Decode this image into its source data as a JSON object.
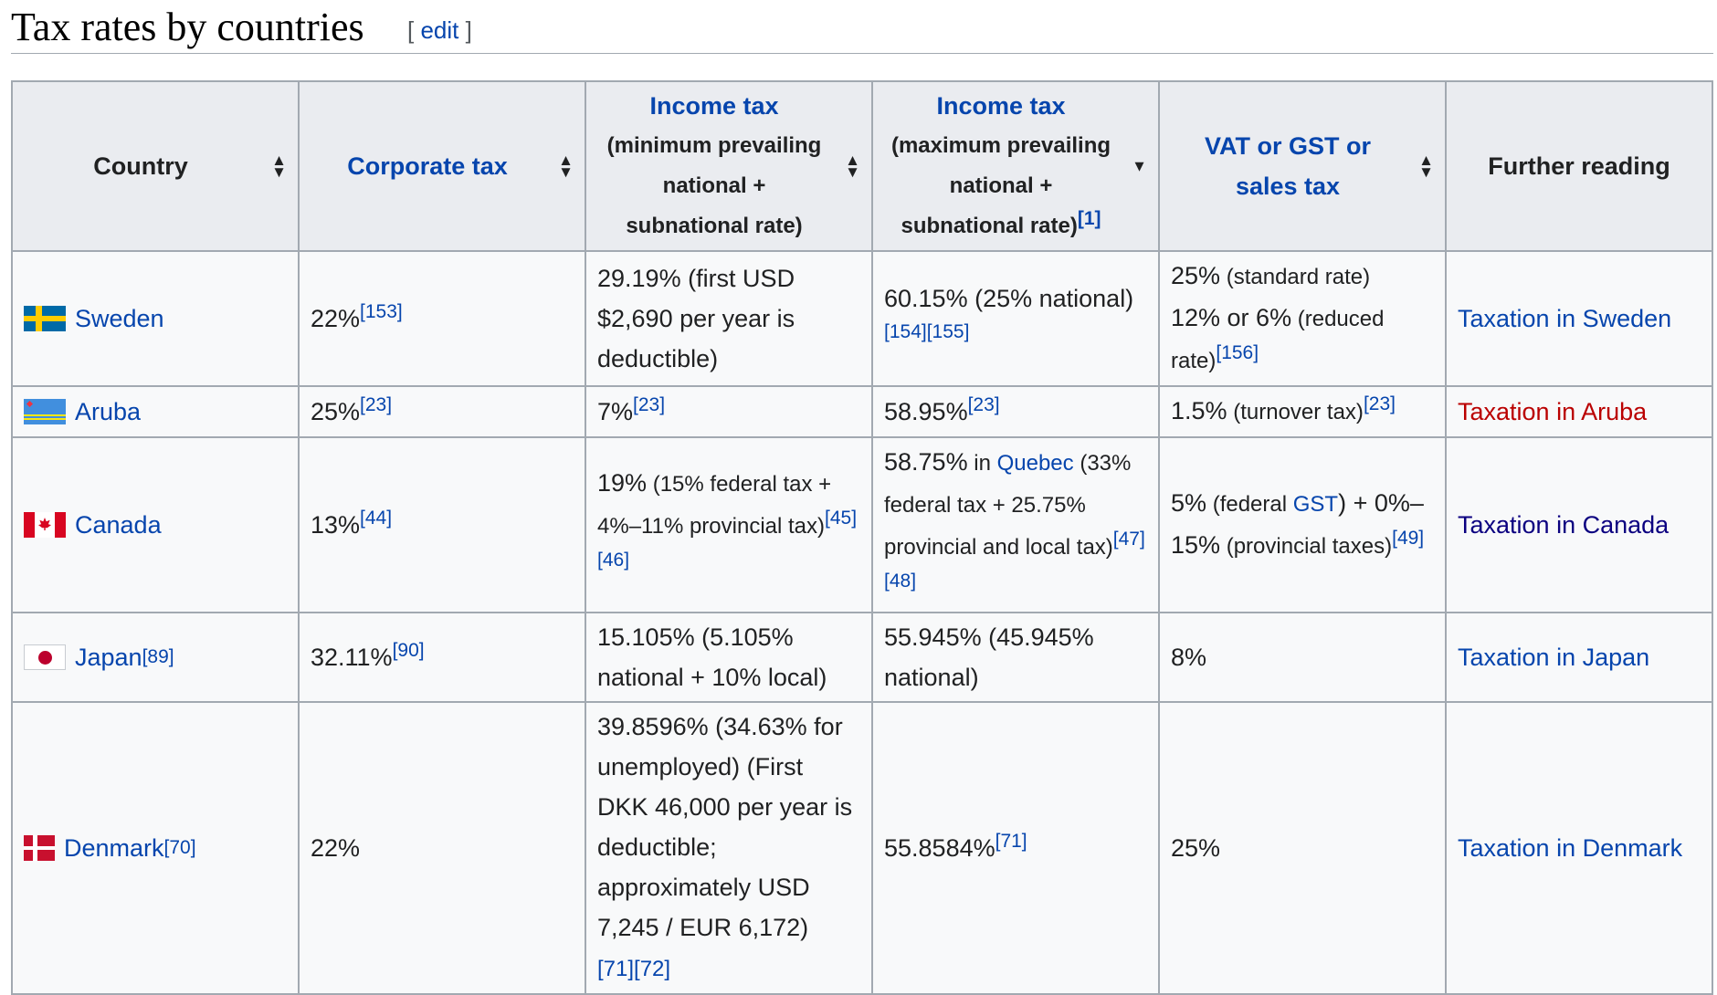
{
  "heading": {
    "title": "Tax rates by countries",
    "edit_open": "[ ",
    "edit_label": "edit",
    "edit_close": " ]"
  },
  "columns": {
    "country": "Country",
    "corporate": "Corporate tax",
    "income_min_title": "Income tax",
    "income_min_sub": "(minimum prevailing national + subnational rate)",
    "income_max_title": "Income tax",
    "income_max_sub": "(maximum prevailing national + subnational rate)",
    "income_max_ref": "[1]",
    "vat": "VAT or GST or sales tax",
    "further": "Further reading"
  },
  "icons": {
    "sort": "sort-updown-icon",
    "sort_desc": "sort-down-icon",
    "flags": [
      "sweden-flag-icon",
      "aruba-flag-icon",
      "canada-flag-icon",
      "japan-flag-icon",
      "denmark-flag-icon"
    ]
  },
  "colors": {
    "link": "#0645ad",
    "redlink": "#ba0000",
    "visited": "#0b0080",
    "header_bg": "#eaecf0",
    "cell_bg": "#f8f9fa",
    "border": "#a2a9b1"
  },
  "rows": [
    {
      "country": "Sweden",
      "country_ref": "",
      "corp": "22%",
      "corp_ref": "[153]",
      "min_main": "29.19% (first USD $2,690 per year is deductible)",
      "min_small": "",
      "min_ref": "",
      "max_main": "60.15% (25% national)",
      "max_ref": "[154][155]",
      "vat_line1": "25%",
      "vat_line1_small": " (standard rate)",
      "vat_line2": "12% or 6%",
      "vat_line2_small": " (reduced rate)",
      "vat_ref": "[156]",
      "further": "Taxation in Sweden"
    },
    {
      "country": "Aruba",
      "country_ref": "",
      "corp": "25%",
      "corp_ref": "[23]",
      "min_main": "7%",
      "min_ref": "[23]",
      "max_main": "58.95%",
      "max_ref": "[23]",
      "vat_main": "1.5%",
      "vat_small": " (turnover tax)",
      "vat_ref": "[23]",
      "further": "Taxation in Aruba"
    },
    {
      "country": "Canada",
      "country_ref": "",
      "corp": "13%",
      "corp_ref": "[44]",
      "min_main": "19%",
      "min_small": " (15% federal tax + 4%–11% provincial tax)",
      "min_ref": "[45][46]",
      "max_main": "58.75%",
      "max_small_a": " in ",
      "max_link": "Quebec",
      "max_small_b": " (33% federal tax + 25.75% provincial and local tax)",
      "max_ref": "[47][48]",
      "vat_a": "5%",
      "vat_b": " (federal ",
      "vat_link": "GST",
      "vat_c": ") + ",
      "vat_d": "0%–15%",
      "vat_e": " (provincial taxes)",
      "vat_ref": "[49]",
      "further": "Taxation in Canada"
    },
    {
      "country": "Japan",
      "country_ref": "[89]",
      "corp": "32.11%",
      "corp_ref": "[90]",
      "min_main": "15.105% (5.105% national + 10% local)",
      "max_main": "55.945% (45.945% national)",
      "vat_main": "8%",
      "further": "Taxation in Japan"
    },
    {
      "country": "Denmark",
      "country_ref": "[70]",
      "corp": "22%",
      "min_main": "39.8596% (34.63% for unemployed) (First DKK 46,000 per year is deductible; approximately USD 7,245 / EUR 6,172)",
      "min_ref": "[71][72]",
      "max_main": "55.8584%",
      "max_ref": "[71]",
      "vat_main": "25%",
      "further": "Taxation in Denmark"
    }
  ]
}
